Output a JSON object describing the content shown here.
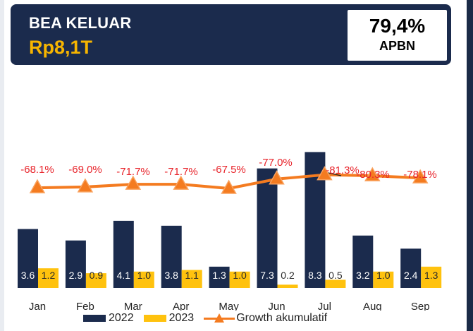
{
  "header": {
    "title": "BEA KELUAR",
    "value": "Rp8,1T",
    "apbn_pct": "79,4%",
    "apbn_label": "APBN"
  },
  "colors": {
    "header_bg": "#1b2b4d",
    "accent": "#f7b500",
    "series_2022": "#1b2b4d",
    "series_2023": "#ffc20e",
    "growth_line": "#f47b20",
    "growth_label": "#e8232a"
  },
  "chart_data": {
    "type": "bar",
    "categories": [
      "Jan",
      "Feb",
      "Mar",
      "Apr",
      "May",
      "Jun",
      "Jul",
      "Aug",
      "Sep"
    ],
    "series": [
      {
        "name": "2022",
        "type": "bar",
        "values": [
          3.6,
          2.9,
          4.1,
          3.8,
          1.3,
          7.3,
          8.3,
          3.2,
          2.4
        ],
        "labels": [
          "3.6",
          "2.9",
          "4.1",
          "3.8",
          "1.3",
          "7.3",
          "8.3",
          "3.2",
          "2.4"
        ]
      },
      {
        "name": "2023",
        "type": "bar",
        "values": [
          1.2,
          0.9,
          1.0,
          1.1,
          1.0,
          0.2,
          0.5,
          1.0,
          1.3
        ],
        "labels": [
          "1.2",
          "0.9",
          "1.0",
          "1.1",
          "1.0",
          "0.2",
          "0.5",
          "1.0",
          "1.3"
        ]
      },
      {
        "name": "Growth akumulatif",
        "type": "line",
        "values": [
          -68.1,
          -69.0,
          -71.7,
          -71.7,
          -67.5,
          -77.0,
          -81.3,
          -80.3,
          -78.1
        ],
        "labels": [
          "-68.1%",
          "-69.0%",
          "-71.7%",
          "-71.7%",
          "-67.5%",
          "-77.0%",
          "-81.3%",
          "-80.3%",
          "-78.1%"
        ]
      }
    ],
    "legend": [
      "2022",
      "2023",
      "Growth akumulatif"
    ],
    "legend_position": "bottom",
    "grid": false
  }
}
